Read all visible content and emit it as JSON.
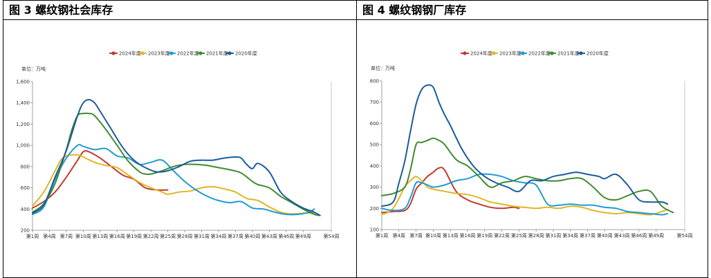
{
  "chart_data": [
    {
      "type": "line",
      "title": "图 3 螺纹钢社会库存",
      "unit_label": "单位：万吨",
      "ylim": [
        200,
        1600
      ],
      "yticks": [
        200,
        400,
        600,
        800,
        1000,
        1200,
        1400,
        1600
      ],
      "ytick_labels": [
        "200",
        "400",
        "600",
        "800",
        "1,000",
        "1,200",
        "1,400",
        "1,600"
      ],
      "xlim": [
        1,
        54
      ],
      "xticks": [
        1,
        4,
        7,
        10,
        13,
        16,
        19,
        22,
        25,
        28,
        31,
        34,
        37,
        40,
        43,
        46,
        49,
        54
      ],
      "xtick_labels": [
        "第1周",
        "第4周",
        "第7周",
        "第10周",
        "第13周",
        "第16周",
        "第19周",
        "第22周",
        "第25周",
        "第28周",
        "第31周",
        "第34周",
        "第37周",
        "第40周",
        "第43周",
        "第46周",
        "第49周",
        "第54周"
      ],
      "legend": "top",
      "series": [
        {
          "name": "2024年度",
          "color": "#C0392B",
          "x": [
            1,
            3,
            5,
            7,
            9,
            10,
            11,
            13,
            15,
            17,
            19,
            21,
            23,
            25
          ],
          "values": [
            410,
            470,
            560,
            700,
            860,
            940,
            940,
            880,
            800,
            720,
            680,
            600,
            580,
            580
          ]
        },
        {
          "name": "2023年度",
          "color": "#E0B624",
          "x": [
            1,
            3,
            5,
            6,
            7,
            8,
            9,
            10,
            12,
            14,
            16,
            18,
            20,
            22,
            24,
            25,
            27,
            29,
            31,
            33,
            35,
            37,
            39,
            41,
            43,
            45,
            47,
            49,
            51
          ],
          "values": [
            430,
            560,
            760,
            860,
            900,
            910,
            910,
            890,
            840,
            810,
            790,
            720,
            650,
            600,
            560,
            540,
            560,
            570,
            600,
            610,
            590,
            560,
            500,
            480,
            420,
            370,
            355,
            360,
            365
          ]
        },
        {
          "name": "2022年度",
          "color": "#1E9AD6",
          "x": [
            1,
            3,
            5,
            7,
            9,
            10,
            12,
            14,
            16,
            18,
            20,
            22,
            24,
            26,
            28,
            30,
            32,
            34,
            36,
            38,
            40,
            42,
            44,
            46,
            48,
            50,
            51
          ],
          "values": [
            350,
            420,
            680,
            880,
            1000,
            990,
            960,
            970,
            900,
            880,
            820,
            840,
            860,
            760,
            660,
            580,
            520,
            480,
            460,
            470,
            410,
            400,
            370,
            350,
            350,
            370,
            400
          ]
        },
        {
          "name": "2021年度",
          "color": "#3E8B2E",
          "x": [
            1,
            3,
            5,
            7,
            8,
            9,
            10,
            11,
            12,
            14,
            16,
            18,
            20,
            21,
            22,
            24,
            26,
            28,
            30,
            32,
            34,
            36,
            38,
            40,
            41,
            43,
            45,
            47,
            49,
            51,
            52
          ],
          "values": [
            370,
            450,
            640,
            960,
            1150,
            1280,
            1300,
            1300,
            1280,
            1150,
            1000,
            850,
            750,
            730,
            730,
            760,
            800,
            820,
            820,
            810,
            790,
            770,
            740,
            660,
            630,
            600,
            520,
            460,
            400,
            350,
            340
          ]
        },
        {
          "name": "2020年度",
          "color": "#1A5A9B",
          "x": [
            1,
            3,
            5,
            7,
            9,
            10,
            11,
            12,
            13,
            15,
            17,
            19,
            21,
            23,
            25,
            27,
            29,
            31,
            33,
            35,
            37,
            38,
            39,
            40,
            41,
            43,
            45,
            47,
            49,
            51,
            52
          ],
          "values": [
            360,
            440,
            700,
            950,
            1280,
            1400,
            1430,
            1400,
            1320,
            1150,
            980,
            860,
            790,
            750,
            760,
            800,
            850,
            860,
            860,
            880,
            890,
            880,
            820,
            780,
            830,
            750,
            560,
            470,
            410,
            370,
            340
          ]
        }
      ]
    },
    {
      "type": "line",
      "title": "图 4 螺纹钢钢厂库存",
      "unit_label": "单位：万吨",
      "ylim": [
        100,
        800
      ],
      "yticks": [
        100,
        200,
        300,
        400,
        500,
        600,
        700,
        800
      ],
      "ytick_labels": [
        "100",
        "200",
        "300",
        "400",
        "500",
        "600",
        "700",
        "800"
      ],
      "xlim": [
        1,
        54
      ],
      "xticks": [
        1,
        4,
        7,
        10,
        13,
        16,
        19,
        22,
        25,
        28,
        31,
        34,
        37,
        40,
        43,
        46,
        49,
        54
      ],
      "xtick_labels": [
        "第1周",
        "第4周",
        "第7周",
        "第10周",
        "第13周",
        "第16周",
        "第19周",
        "第22周",
        "第25周",
        "第28周",
        "第31周",
        "第34周",
        "第37周",
        "第40周",
        "第43周",
        "第46周",
        "第49周",
        "第54周"
      ],
      "legend": "top",
      "series": [
        {
          "name": "2024年度",
          "color": "#C0392B",
          "x": [
            1,
            3,
            5,
            6,
            7,
            8,
            9,
            10,
            11,
            12,
            14,
            16,
            18,
            20,
            22,
            24,
            25
          ],
          "values": [
            180,
            185,
            190,
            220,
            290,
            320,
            350,
            370,
            390,
            380,
            280,
            240,
            220,
            205,
            200,
            205,
            200
          ]
        },
        {
          "name": "2023年度",
          "color": "#E0B624",
          "x": [
            1,
            3,
            5,
            6,
            7,
            8,
            9,
            10,
            12,
            14,
            16,
            18,
            20,
            22,
            24,
            26,
            28,
            30,
            32,
            34,
            36,
            38,
            40,
            42,
            44,
            46,
            48,
            50,
            51
          ],
          "values": [
            170,
            200,
            300,
            330,
            350,
            330,
            300,
            290,
            280,
            270,
            265,
            250,
            230,
            220,
            210,
            205,
            200,
            205,
            200,
            210,
            205,
            190,
            180,
            175,
            180,
            175,
            170,
            185,
            195
          ]
        },
        {
          "name": "2022年度",
          "color": "#1E9AD6",
          "x": [
            1,
            3,
            5,
            6,
            7,
            8,
            9,
            10,
            12,
            14,
            16,
            18,
            20,
            22,
            24,
            26,
            28,
            30,
            32,
            34,
            36,
            38,
            40,
            42,
            44,
            46,
            48,
            50,
            51
          ],
          "values": [
            200,
            190,
            200,
            250,
            320,
            320,
            310,
            300,
            310,
            330,
            340,
            360,
            360,
            350,
            330,
            320,
            310,
            220,
            215,
            220,
            215,
            215,
            205,
            200,
            185,
            180,
            175,
            170,
            175
          ]
        },
        {
          "name": "2021年度",
          "color": "#3E8B2E",
          "x": [
            1,
            3,
            5,
            6,
            7,
            8,
            9,
            10,
            11,
            12,
            14,
            16,
            18,
            20,
            22,
            24,
            26,
            28,
            30,
            32,
            34,
            36,
            38,
            40,
            42,
            44,
            46,
            48,
            50,
            52
          ],
          "values": [
            260,
            270,
            300,
            380,
            500,
            510,
            520,
            530,
            520,
            500,
            430,
            400,
            350,
            300,
            320,
            330,
            350,
            340,
            330,
            330,
            340,
            340,
            300,
            250,
            240,
            260,
            280,
            280,
            210,
            180
          ]
        },
        {
          "name": "2020年度",
          "color": "#1A5A9B",
          "x": [
            1,
            3,
            4,
            5,
            6,
            7,
            8,
            9,
            10,
            11,
            12,
            13,
            15,
            17,
            19,
            21,
            23,
            25,
            27,
            29,
            31,
            33,
            35,
            37,
            39,
            40,
            42,
            44,
            46,
            48,
            50,
            51
          ],
          "values": [
            210,
            230,
            320,
            420,
            560,
            690,
            760,
            780,
            770,
            700,
            640,
            590,
            480,
            400,
            350,
            320,
            300,
            280,
            330,
            330,
            350,
            360,
            370,
            360,
            350,
            340,
            360,
            310,
            240,
            230,
            230,
            220
          ]
        }
      ]
    }
  ]
}
